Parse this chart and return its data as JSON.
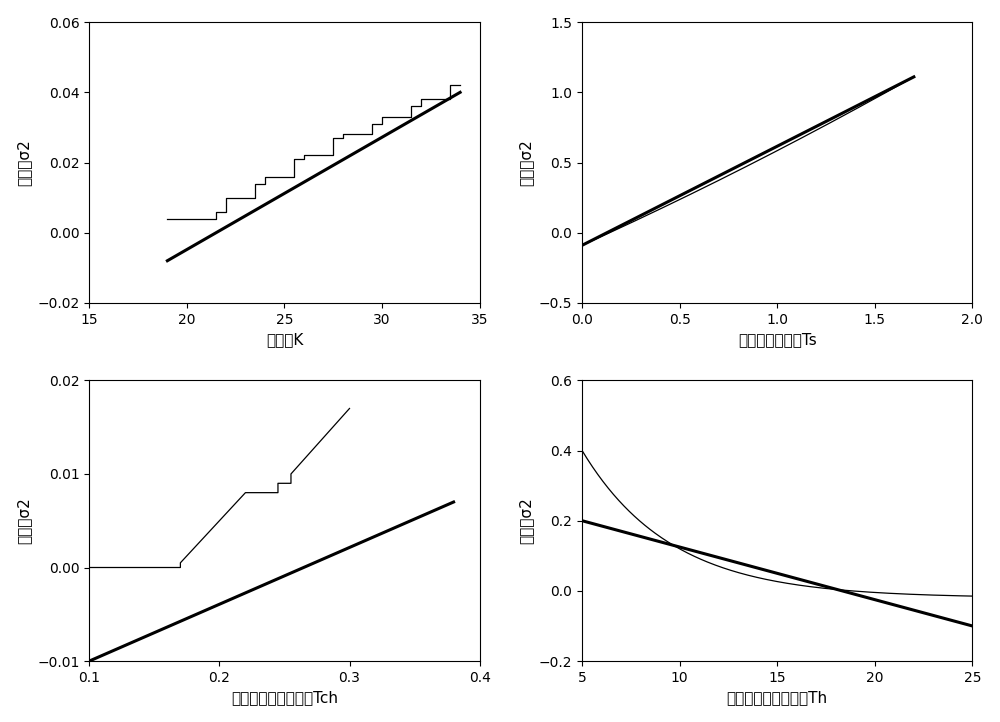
{
  "subplots": [
    {
      "xlabel": "调差率K",
      "ylabel": "超调量σ2",
      "xlim": [
        15,
        35
      ],
      "ylim": [
        -0.02,
        0.06
      ],
      "xticks": [
        15,
        20,
        25,
        30,
        35
      ],
      "yticks": [
        -0.02,
        0,
        0.02,
        0.04,
        0.06
      ]
    },
    {
      "xlabel": "油动机时间常数Ts",
      "ylabel": "超调量σ2",
      "xlim": [
        0,
        2
      ],
      "ylim": [
        -0.5,
        1.5
      ],
      "xticks": [
        0,
        0.5,
        1,
        1.5,
        2
      ],
      "yticks": [
        -0.5,
        0,
        0.5,
        1,
        1.5
      ]
    },
    {
      "xlabel": "汽轮机蔓汽时间常数Tch",
      "ylabel": "超调量σ2",
      "xlim": [
        0.1,
        0.4
      ],
      "ylim": [
        -0.01,
        0.02
      ],
      "xticks": [
        0.1,
        0.2,
        0.3,
        0.4
      ],
      "yticks": [
        -0.01,
        0,
        0.01,
        0.02
      ]
    },
    {
      "xlabel": "发电机惯性时间常数Th",
      "ylabel": "超调量σ2",
      "xlim": [
        5,
        25
      ],
      "ylim": [
        -0.2,
        0.6
      ],
      "xticks": [
        5,
        10,
        15,
        20,
        25
      ],
      "yticks": [
        -0.2,
        0,
        0.2,
        0.4,
        0.6
      ]
    }
  ],
  "line_color_thick": "#000000",
  "line_color_thin": "#000000",
  "thick_lw": 2.2,
  "thin_lw": 0.9,
  "bg_color": "#ffffff",
  "font_size_label": 11,
  "font_size_tick": 10
}
